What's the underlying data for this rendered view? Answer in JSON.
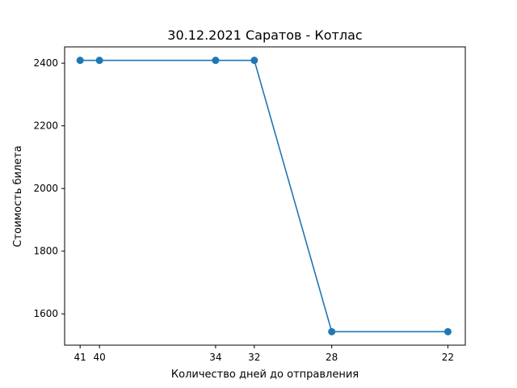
{
  "chart_data": {
    "type": "line",
    "title": "30.12.2021 Саратов - Котлас",
    "xlabel": "Количество дней до отправления",
    "ylabel": "Стоимость билета",
    "x": [
      41,
      40,
      34,
      32,
      28,
      22
    ],
    "y": [
      2409,
      2409,
      2409,
      2409,
      1543,
      1543
    ],
    "x_ticks": [
      41,
      40,
      34,
      32,
      28,
      22
    ],
    "y_ticks": [
      1600,
      1800,
      2000,
      2200,
      2400
    ],
    "xlim": [
      41.8,
      21.1
    ],
    "ylim": [
      1500,
      2452
    ],
    "x_inverted": true,
    "grid": false,
    "line_color": "#1f77b4",
    "marker": "circle"
  }
}
